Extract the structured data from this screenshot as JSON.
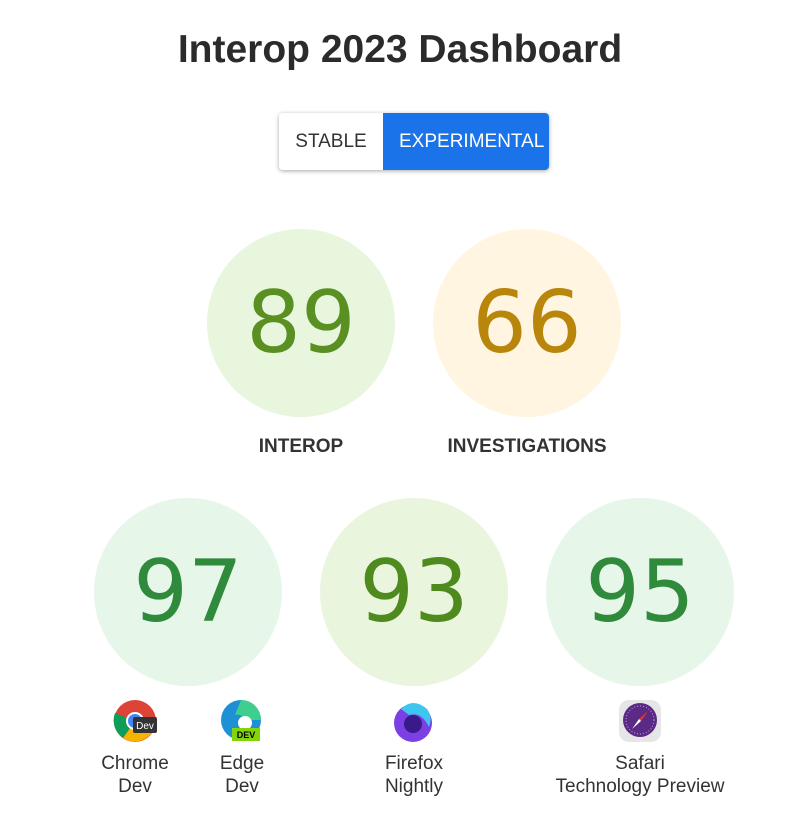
{
  "title": "Interop 2023 Dashboard",
  "toggle": {
    "stable": "STABLE",
    "experimental": "EXPERIMENTAL",
    "selected": "EXPERIMENTAL"
  },
  "summary": [
    {
      "score": "89",
      "label": "INTEROP",
      "bg": "#e8f6dd",
      "color": "#5a8f22"
    },
    {
      "score": "66",
      "label": "INVESTIGATIONS",
      "bg": "#fff5e1",
      "color": "#b8860b"
    }
  ],
  "browsers": [
    {
      "score": "97",
      "bg": "#e6f6e8",
      "color": "#2f8a3b"
    },
    {
      "score": "93",
      "bg": "#e9f6dd",
      "color": "#4f8a1f"
    },
    {
      "score": "95",
      "bg": "#e6f6e8",
      "color": "#2f8a3b"
    }
  ],
  "browser_names": [
    {
      "line1": "Chrome",
      "line2": "Dev",
      "icon": "chrome-dev-icon"
    },
    {
      "line1": "Edge",
      "line2": "Dev",
      "icon": "edge-dev-icon",
      "badge": "DEV"
    },
    {
      "line1": "Firefox",
      "line2": "Nightly",
      "icon": "firefox-nightly-icon"
    },
    {
      "line1": "Safari",
      "line2": "Technology Preview",
      "icon": "safari-technology-preview-icon"
    }
  ]
}
